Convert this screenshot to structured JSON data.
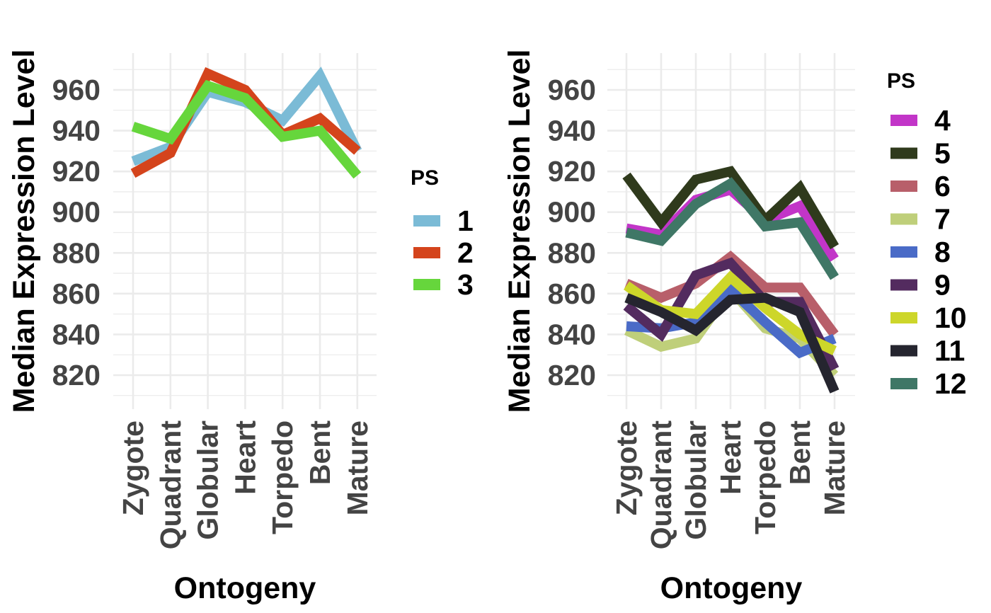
{
  "chart_data": [
    {
      "type": "line",
      "xlabel": "Ontogeny",
      "ylabel": "Median Expression Level",
      "categories": [
        "Zygote",
        "Quadrant",
        "Globular",
        "Heart",
        "Torpedo",
        "Bent",
        "Mature"
      ],
      "ylim": [
        810,
        975
      ],
      "yticks": [
        820,
        840,
        860,
        880,
        900,
        920,
        940,
        960
      ],
      "grid": true,
      "legend_title": "PS",
      "legend_position": "right",
      "series": [
        {
          "name": "1",
          "color": "#7bbbd6",
          "values": [
            925,
            932,
            959,
            954,
            945,
            967,
            930
          ]
        },
        {
          "name": "2",
          "color": "#d4441c",
          "values": [
            919,
            929,
            968,
            960,
            938,
            946,
            930
          ]
        },
        {
          "name": "3",
          "color": "#66d63c",
          "values": [
            942,
            936,
            962,
            956,
            937,
            940,
            918
          ]
        }
      ]
    },
    {
      "type": "line",
      "xlabel": "Ontogeny",
      "ylabel": "Median Expression Level",
      "categories": [
        "Zygote",
        "Quadrant",
        "Globular",
        "Heart",
        "Torpedo",
        "Bent",
        "Mature"
      ],
      "ylim": [
        810,
        975
      ],
      "yticks": [
        820,
        840,
        860,
        880,
        900,
        920,
        940,
        960
      ],
      "grid": true,
      "legend_title": "PS",
      "legend_position": "right",
      "series": [
        {
          "name": "4",
          "color": "#c235c8",
          "values": [
            892,
            889,
            906,
            911,
            896,
            903,
            877
          ]
        },
        {
          "name": "5",
          "color": "#2f3a1c",
          "values": [
            918,
            895,
            916,
            920,
            896,
            912,
            883
          ]
        },
        {
          "name": "6",
          "color": "#b85f6a",
          "values": [
            865,
            858,
            865,
            878,
            863,
            863,
            840
          ]
        },
        {
          "name": "7",
          "color": "#bfcf7a",
          "values": [
            842,
            834,
            838,
            862,
            843,
            838,
            820
          ]
        },
        {
          "name": "8",
          "color": "#4a6bc7",
          "values": [
            844,
            843,
            846,
            862,
            846,
            831,
            838
          ]
        },
        {
          "name": "9",
          "color": "#532b5f",
          "values": [
            854,
            840,
            869,
            875,
            856,
            856,
            823
          ]
        },
        {
          "name": "10",
          "color": "#cdd62a",
          "values": [
            864,
            852,
            850,
            868,
            853,
            840,
            832
          ]
        },
        {
          "name": "11",
          "color": "#25252f",
          "values": [
            858,
            851,
            842,
            857,
            858,
            851,
            812
          ]
        },
        {
          "name": "12",
          "color": "#3f7766",
          "values": [
            890,
            886,
            904,
            914,
            893,
            895,
            868
          ]
        }
      ]
    }
  ]
}
